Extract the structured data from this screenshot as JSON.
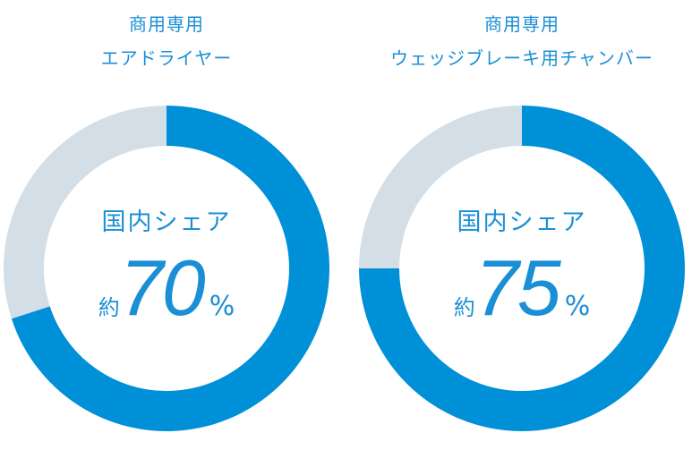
{
  "colors": {
    "share": "#0090d8",
    "rest": "#d3dee6",
    "text": "#1a8fd6"
  },
  "chart_data": [
    {
      "type": "pie",
      "title_lines": [
        "商用専用",
        "エアドライヤー"
      ],
      "label": "国内シェア",
      "prefix": "約",
      "value": 70,
      "unit": "%",
      "values": [
        70,
        30
      ]
    },
    {
      "type": "pie",
      "title_lines": [
        "商用専用",
        "ウェッジブレーキ用チャンバー"
      ],
      "label": "国内シェア",
      "prefix": "約",
      "value": 75,
      "unit": "%",
      "values": [
        75,
        25
      ]
    }
  ]
}
